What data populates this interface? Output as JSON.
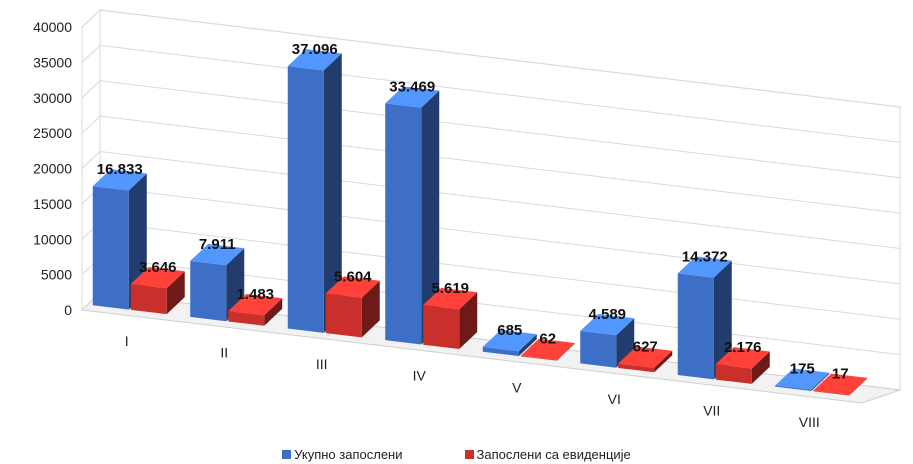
{
  "chart_data": {
    "type": "bar",
    "style": "3d-clustered-column",
    "categories": [
      "I",
      "II",
      "III",
      "IV",
      "V",
      "VI",
      "VII",
      "VIII"
    ],
    "series": [
      {
        "name": "Укупно запослени",
        "color": "#3d6fc6",
        "values": [
          16833,
          7911,
          37096,
          33469,
          685,
          4589,
          14372,
          175
        ],
        "labels": [
          "16.833",
          "7.911",
          "37.096",
          "33.469",
          "685",
          "4.589",
          "14.372",
          "175"
        ]
      },
      {
        "name": "Запослени са евиденције",
        "color": "#c9302b",
        "values": [
          3646,
          1483,
          5604,
          5619,
          62,
          627,
          2176,
          17
        ],
        "labels": [
          "3.646",
          "1.483",
          "5.604",
          "5.619",
          "62",
          "627",
          "2.176",
          "17"
        ]
      }
    ],
    "y_ticks": [
      "0",
      "5000",
      "10000",
      "15000",
      "20000",
      "25000",
      "30000",
      "35000",
      "40000"
    ],
    "ylim": [
      0,
      40000
    ],
    "grid": true,
    "legend": "bottom",
    "title": "",
    "xlabel": "",
    "ylabel": ""
  }
}
